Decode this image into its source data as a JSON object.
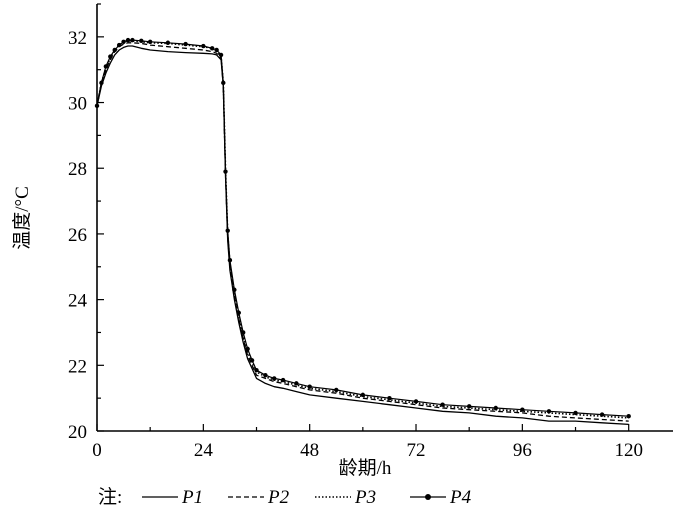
{
  "chart_data": {
    "type": "line",
    "xlabel": "龄期/h",
    "ylabel": "温度/°C",
    "xlim": [
      0,
      130
    ],
    "ylim": [
      20,
      33
    ],
    "xticks": [
      0,
      24,
      48,
      72,
      96,
      120
    ],
    "yticks": [
      20,
      22,
      24,
      26,
      28,
      30,
      32
    ],
    "grid": false,
    "legend": {
      "placement": "bottom",
      "prefix": "注:"
    },
    "series": [
      {
        "name": "P1",
        "style": "solid",
        "x": [
          0,
          1,
          2,
          3,
          4,
          5,
          6,
          7,
          8,
          10,
          12,
          16,
          20,
          24,
          26,
          27,
          28,
          28.5,
          29,
          29.5,
          30,
          31,
          32,
          33,
          34,
          35,
          36,
          38,
          40,
          42,
          45,
          48,
          54,
          60,
          66,
          72,
          78,
          84,
          90,
          96,
          102,
          108,
          114,
          120
        ],
        "y": [
          29.9,
          30.5,
          30.9,
          31.2,
          31.45,
          31.6,
          31.68,
          31.72,
          31.72,
          31.65,
          31.6,
          31.55,
          31.52,
          31.5,
          31.48,
          31.45,
          31.3,
          30.5,
          27.8,
          25.8,
          24.9,
          24.0,
          23.3,
          22.7,
          22.2,
          21.9,
          21.6,
          21.45,
          21.35,
          21.3,
          21.2,
          21.1,
          21.0,
          20.9,
          20.8,
          20.7,
          20.6,
          20.55,
          20.45,
          20.4,
          20.3,
          20.3,
          20.25,
          20.2
        ]
      },
      {
        "name": "P2",
        "style": "dashed",
        "x": [
          0,
          1,
          2,
          3,
          4,
          5,
          6,
          7,
          8,
          10,
          12,
          16,
          20,
          24,
          26,
          27,
          28,
          28.5,
          29,
          29.5,
          30,
          31,
          32,
          33,
          34,
          35,
          36,
          38,
          40,
          42,
          45,
          48,
          54,
          60,
          66,
          72,
          78,
          84,
          90,
          96,
          102,
          108,
          114,
          120
        ],
        "y": [
          29.9,
          30.6,
          31.0,
          31.3,
          31.55,
          31.7,
          31.78,
          31.82,
          31.82,
          31.8,
          31.75,
          31.7,
          31.65,
          31.6,
          31.55,
          31.5,
          31.35,
          30.5,
          27.8,
          25.9,
          25.0,
          24.1,
          23.4,
          22.8,
          22.3,
          22.0,
          21.7,
          21.6,
          21.5,
          21.45,
          21.35,
          21.25,
          21.15,
          21.0,
          20.9,
          20.8,
          20.7,
          20.65,
          20.6,
          20.55,
          20.45,
          20.4,
          20.35,
          20.3
        ]
      },
      {
        "name": "P3",
        "style": "dotted",
        "x": [
          0,
          1,
          2,
          3,
          4,
          5,
          6,
          7,
          8,
          10,
          12,
          16,
          20,
          24,
          26,
          27,
          28,
          28.5,
          29,
          29.5,
          30,
          31,
          32,
          33,
          34,
          35,
          36,
          38,
          40,
          42,
          45,
          48,
          54,
          60,
          66,
          72,
          78,
          84,
          90,
          96,
          102,
          108,
          114,
          120
        ],
        "y": [
          29.9,
          30.6,
          31.05,
          31.35,
          31.6,
          31.75,
          31.85,
          31.88,
          31.88,
          31.85,
          31.82,
          31.8,
          31.75,
          31.7,
          31.65,
          31.55,
          31.4,
          30.6,
          28.0,
          26.0,
          25.1,
          24.2,
          23.5,
          22.9,
          22.4,
          22.1,
          21.8,
          21.65,
          21.55,
          21.5,
          21.4,
          21.3,
          21.2,
          21.05,
          20.95,
          20.85,
          20.75,
          20.7,
          20.65,
          20.6,
          20.55,
          20.5,
          20.45,
          20.4
        ]
      },
      {
        "name": "P4",
        "style": "line-dot",
        "x": [
          0,
          1,
          2,
          3,
          4,
          5,
          6,
          7,
          8,
          10,
          12,
          16,
          20,
          24,
          26,
          27,
          28,
          28.5,
          29,
          29.5,
          30,
          31,
          32,
          33,
          34,
          35,
          36,
          38,
          40,
          42,
          45,
          48,
          54,
          60,
          66,
          72,
          78,
          84,
          90,
          96,
          102,
          108,
          114,
          120
        ],
        "y": [
          29.9,
          30.6,
          31.1,
          31.4,
          31.6,
          31.75,
          31.85,
          31.9,
          31.9,
          31.88,
          31.85,
          31.82,
          31.78,
          31.72,
          31.65,
          31.6,
          31.45,
          30.6,
          27.9,
          26.1,
          25.2,
          24.3,
          23.6,
          23.0,
          22.5,
          22.15,
          21.85,
          21.7,
          21.6,
          21.55,
          21.45,
          21.35,
          21.25,
          21.1,
          21.0,
          20.9,
          20.8,
          20.75,
          20.7,
          20.65,
          20.6,
          20.55,
          20.5,
          20.45
        ]
      }
    ]
  }
}
